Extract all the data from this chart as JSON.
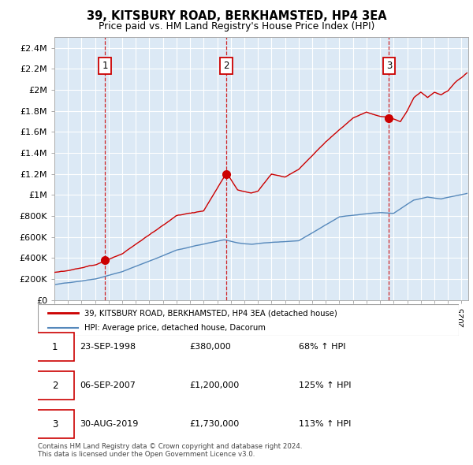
{
  "title": "39, KITSBURY ROAD, BERKHAMSTED, HP4 3EA",
  "subtitle": "Price paid vs. HM Land Registry's House Price Index (HPI)",
  "plot_bg_color": "#dce9f5",
  "yticks": [
    0,
    200000,
    400000,
    600000,
    800000,
    1000000,
    1200000,
    1400000,
    1600000,
    1800000,
    2000000,
    2200000,
    2400000
  ],
  "ytick_labels": [
    "£0",
    "£200K",
    "£400K",
    "£600K",
    "£800K",
    "£1M",
    "£1.2M",
    "£1.4M",
    "£1.6M",
    "£1.8M",
    "£2M",
    "£2.2M",
    "£2.4M"
  ],
  "xmin": 1995.0,
  "xmax": 2025.5,
  "ymin": 0,
  "ymax": 2500000,
  "sales": [
    {
      "year": 1998.73,
      "price": 380000,
      "label": "1"
    },
    {
      "year": 2007.68,
      "price": 1200000,
      "label": "2"
    },
    {
      "year": 2019.66,
      "price": 1730000,
      "label": "3"
    }
  ],
  "sale_color": "#cc0000",
  "hpi_color": "#5588bb",
  "legend_entries": [
    "39, KITSBURY ROAD, BERKHAMSTED, HP4 3EA (detached house)",
    "HPI: Average price, detached house, Dacorum"
  ],
  "table_rows": [
    {
      "num": "1",
      "date": "23-SEP-1998",
      "price": "£380,000",
      "hpi": "68% ↑ HPI"
    },
    {
      "num": "2",
      "date": "06-SEP-2007",
      "price": "£1,200,000",
      "hpi": "125% ↑ HPI"
    },
    {
      "num": "3",
      "date": "30-AUG-2019",
      "price": "£1,730,000",
      "hpi": "113% ↑ HPI"
    }
  ],
  "footer": "Contains HM Land Registry data © Crown copyright and database right 2024.\nThis data is licensed under the Open Government Licence v3.0."
}
